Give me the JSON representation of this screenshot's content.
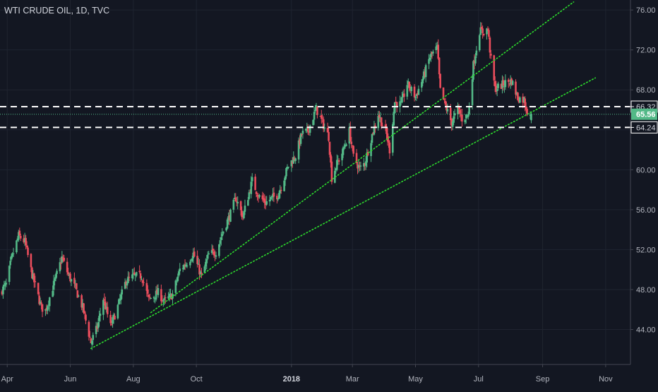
{
  "colors": {
    "background": "#131722",
    "up_candle": "#53b987",
    "down_candle": "#eb4d5c",
    "trendline": "#2ddc2d",
    "level_line": "#ffffff",
    "last_price_line": "#53b987",
    "axis_text": "#b2b5be"
  },
  "chart_data": {
    "type": "candlestick",
    "title": "WTI CRUDE OIL, 1D, TVC",
    "x_range": [
      "2017-03-25",
      "2018-11-25"
    ],
    "ylim": [
      40.5,
      77.0
    ],
    "y_ticks": [
      "44.00",
      "48.00",
      "52.00",
      "56.00",
      "60.00",
      "64.00",
      "68.00",
      "72.00",
      "76.00"
    ],
    "x_tick_labels": [
      {
        "date": "2017-04-01",
        "label": "Apr",
        "bold": false
      },
      {
        "date": "2017-06-01",
        "label": "Jun",
        "bold": false
      },
      {
        "date": "2017-08-01",
        "label": "Aug",
        "bold": false
      },
      {
        "date": "2017-10-01",
        "label": "Oct",
        "bold": false
      },
      {
        "date": "2018-01-01",
        "label": "2018",
        "bold": true
      },
      {
        "date": "2018-03-01",
        "label": "Mar",
        "bold": false
      },
      {
        "date": "2018-05-01",
        "label": "May",
        "bold": false
      },
      {
        "date": "2018-07-01",
        "label": "Jul",
        "bold": false
      },
      {
        "date": "2018-09-01",
        "label": "Sep",
        "bold": false
      },
      {
        "date": "2018-11-01",
        "label": "Nov",
        "bold": false
      }
    ],
    "price_path": [
      [
        "2017-03-25",
        47.7
      ],
      [
        "2017-03-31",
        48.5
      ],
      [
        "2017-04-05",
        51.0
      ],
      [
        "2017-04-12",
        53.4
      ],
      [
        "2017-04-18",
        52.8
      ],
      [
        "2017-04-25",
        49.5
      ],
      [
        "2017-05-04",
        46.2
      ],
      [
        "2017-05-08",
        45.9
      ],
      [
        "2017-05-15",
        48.2
      ],
      [
        "2017-05-24",
        51.2
      ],
      [
        "2017-05-30",
        49.5
      ],
      [
        "2017-06-06",
        48.1
      ],
      [
        "2017-06-13",
        46.2
      ],
      [
        "2017-06-21",
        42.7
      ],
      [
        "2017-06-27",
        44.2
      ],
      [
        "2017-07-03",
        47.1
      ],
      [
        "2017-07-10",
        44.3
      ],
      [
        "2017-07-17",
        46.3
      ],
      [
        "2017-07-25",
        48.9
      ],
      [
        "2017-08-01",
        49.3
      ],
      [
        "2017-08-09",
        49.4
      ],
      [
        "2017-08-16",
        47.0
      ],
      [
        "2017-08-25",
        47.7
      ],
      [
        "2017-08-31",
        46.8
      ],
      [
        "2017-09-08",
        47.5
      ],
      [
        "2017-09-15",
        50.0
      ],
      [
        "2017-09-22",
        50.7
      ],
      [
        "2017-09-28",
        51.6
      ],
      [
        "2017-10-06",
        49.3
      ],
      [
        "2017-10-13",
        51.5
      ],
      [
        "2017-10-20",
        51.8
      ],
      [
        "2017-10-27",
        53.9
      ],
      [
        "2017-11-03",
        55.6
      ],
      [
        "2017-11-08",
        57.2
      ],
      [
        "2017-11-15",
        55.3
      ],
      [
        "2017-11-24",
        58.9
      ],
      [
        "2017-11-30",
        57.4
      ],
      [
        "2017-12-07",
        56.7
      ],
      [
        "2017-12-12",
        57.1
      ],
      [
        "2017-12-19",
        57.5
      ],
      [
        "2017-12-29",
        60.4
      ],
      [
        "2018-01-05",
        61.4
      ],
      [
        "2018-01-11",
        63.6
      ],
      [
        "2018-01-17",
        63.9
      ],
      [
        "2018-01-25",
        66.1
      ],
      [
        "2018-01-31",
        64.7
      ],
      [
        "2018-02-06",
        63.3
      ],
      [
        "2018-02-09",
        59.2
      ],
      [
        "2018-02-14",
        60.6
      ],
      [
        "2018-02-20",
        61.9
      ],
      [
        "2018-02-26",
        63.9
      ],
      [
        "2018-03-02",
        61.3
      ],
      [
        "2018-03-08",
        60.1
      ],
      [
        "2018-03-13",
        60.7
      ],
      [
        "2018-03-20",
        63.5
      ],
      [
        "2018-03-26",
        65.6
      ],
      [
        "2018-04-03",
        63.5
      ],
      [
        "2018-04-06",
        62.0
      ],
      [
        "2018-04-11",
        66.8
      ],
      [
        "2018-04-17",
        66.5
      ],
      [
        "2018-04-23",
        68.6
      ],
      [
        "2018-05-01",
        67.3
      ],
      [
        "2018-05-08",
        69.1
      ],
      [
        "2018-05-15",
        71.3
      ],
      [
        "2018-05-22",
        72.2
      ],
      [
        "2018-05-25",
        67.9
      ],
      [
        "2018-06-01",
        65.8
      ],
      [
        "2018-06-05",
        64.7
      ],
      [
        "2018-06-11",
        66.1
      ],
      [
        "2018-06-15",
        65.1
      ],
      [
        "2018-06-21",
        65.5
      ],
      [
        "2018-06-26",
        70.5
      ],
      [
        "2018-07-02",
        73.9
      ],
      [
        "2018-07-06",
        73.8
      ],
      [
        "2018-07-10",
        74.1
      ],
      [
        "2018-07-13",
        71.0
      ],
      [
        "2018-07-17",
        68.1
      ],
      [
        "2018-07-24",
        68.5
      ],
      [
        "2018-07-27",
        68.7
      ],
      [
        "2018-08-02",
        68.9
      ],
      [
        "2018-08-08",
        67.2
      ],
      [
        "2018-08-14",
        67.0
      ],
      [
        "2018-08-17",
        65.9
      ],
      [
        "2018-08-21",
        65.56
      ]
    ],
    "trendlines": [
      {
        "from": [
          "2017-06-21",
          42.1
        ],
        "to": [
          "2018-10-22",
          69.2
        ]
      },
      {
        "from": [
          "2017-08-18",
          45.7
        ],
        "to": [
          "2018-10-01",
          76.8
        ]
      }
    ],
    "horizontal_levels": [
      {
        "value": 66.32,
        "label": "66.32",
        "style": "dashed"
      },
      {
        "value": 64.24,
        "label": "64.24",
        "style": "dashed"
      }
    ],
    "last_price": {
      "value": 65.56,
      "label": "65.56"
    }
  }
}
